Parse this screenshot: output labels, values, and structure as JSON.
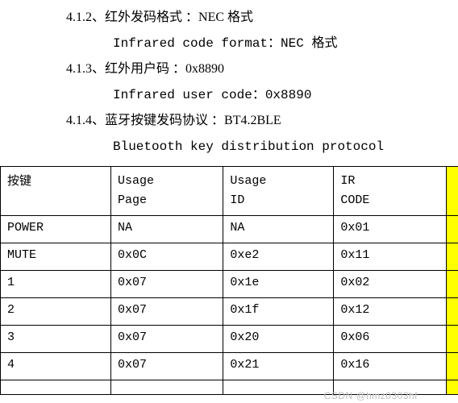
{
  "specs": [
    {
      "num": "4.1.2、",
      "zh": "红外发码格式 ：NEC 格式",
      "en": "Infrared code format：NEC 格式"
    },
    {
      "num": "4.1.3、",
      "zh": "红外用户码 ：0x8890",
      "en": "Infrared user code：0x8890"
    },
    {
      "num": "4.1.4、",
      "zh": "蓝牙按键发码协议 ：BT4.2BLE",
      "en": "Bluetooth key distribution protocol"
    }
  ],
  "table": {
    "headers": {
      "c0_l1": "按键",
      "c0_l2": "",
      "c1_l1": "Usage",
      "c1_l2": "Page",
      "c2_l1": "Usage",
      "c2_l2": "ID",
      "c3_l1": "IR",
      "c3_l2": "CODE"
    },
    "rows": [
      {
        "c0": "POWER",
        "c1": "NA",
        "c2": "NA",
        "c3": "0x01"
      },
      {
        "c0": "MUTE",
        "c1": "0x0C",
        "c2": "0xe2",
        "c3": "0x11"
      },
      {
        "c0": "1",
        "c1": "0x07",
        "c2": "0x1e",
        "c3": "0x02"
      },
      {
        "c0": "2",
        "c1": "0x07",
        "c2": "0x1f",
        "c3": "0x12"
      },
      {
        "c0": "3",
        "c1": "0x07",
        "c2": "0x20",
        "c3": "0x06"
      },
      {
        "c0": "4",
        "c1": "0x07",
        "c2": "0x21",
        "c3": "0x16"
      },
      {
        "c0": "",
        "c1": "",
        "c2": "",
        "c3": ""
      }
    ]
  },
  "watermark": "CSDN @hmz0303hf",
  "colors": {
    "highlight_strip": "#ffff00",
    "text": "#000000",
    "bg": "#ffffff",
    "border": "#000000",
    "watermark": "#c0c0c0"
  },
  "typography": {
    "base_fontsize": 16,
    "table_fontsize": 15,
    "watermark_fontsize": 12,
    "cn_font": "SimSun",
    "mono_font": "Courier New"
  }
}
